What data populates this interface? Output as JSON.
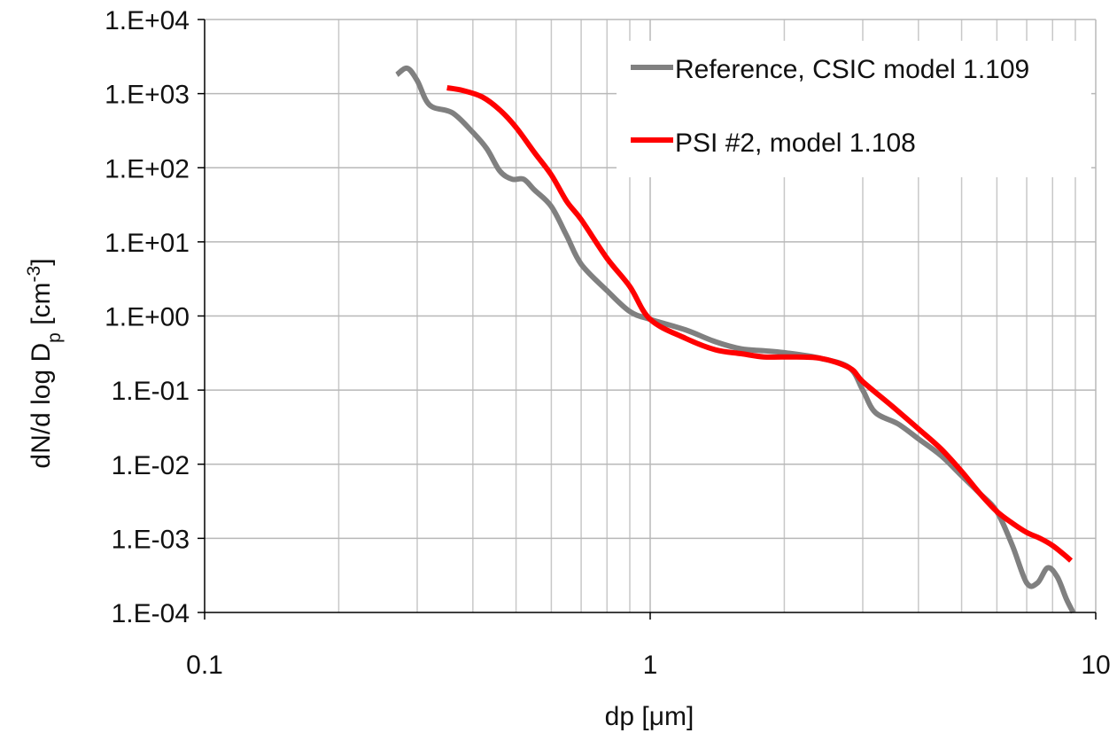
{
  "chart_data": {
    "type": "line",
    "title": "",
    "xlabel": "dp [μm]",
    "ylabel": {
      "main": "dN/d log D",
      "sub": "p",
      "unit_open": " [cm",
      "unit_sup": "-3",
      "unit_close": "]"
    },
    "xscale": "log",
    "yscale": "log",
    "xlim": [
      0.1,
      10
    ],
    "ylim": [
      0.0001,
      10000
    ],
    "grid": true,
    "legend_position": "top-right",
    "x_tick_labels": [
      "0.1",
      "1",
      "10"
    ],
    "y_tick_labels": [
      "1.E-04",
      "1.E-03",
      "1.E-02",
      "1.E-01",
      "1.E+00",
      "1.E+01",
      "1.E+02",
      "1.E+03",
      "1.E+04"
    ],
    "series": [
      {
        "name": "Reference, CSIC model 1.109",
        "color": "#808080",
        "x": [
          0.27,
          0.285,
          0.3,
          0.32,
          0.36,
          0.4,
          0.43,
          0.46,
          0.49,
          0.52,
          0.55,
          0.6,
          0.65,
          0.7,
          0.8,
          0.9,
          1.0,
          1.2,
          1.4,
          1.6,
          1.8,
          2.0,
          2.4,
          2.8,
          3.0,
          3.2,
          3.6,
          4.0,
          4.5,
          5.0,
          5.5,
          6.0,
          6.5,
          7.0,
          7.4,
          7.8,
          8.2,
          8.6,
          8.9
        ],
        "y": [
          1800,
          2200,
          1500,
          700,
          550,
          300,
          180,
          90,
          70,
          70,
          50,
          30,
          12,
          5,
          2.2,
          1.15,
          0.9,
          0.65,
          0.45,
          0.36,
          0.34,
          0.32,
          0.27,
          0.2,
          0.1,
          0.05,
          0.035,
          0.022,
          0.013,
          0.007,
          0.004,
          0.0023,
          0.0008,
          0.00025,
          0.00025,
          0.0004,
          0.0003,
          0.00015,
          0.0001
        ]
      },
      {
        "name": "PSI #2, model 1.108",
        "color": "#ff0000",
        "x": [
          0.35,
          0.38,
          0.42,
          0.46,
          0.5,
          0.55,
          0.6,
          0.65,
          0.7,
          0.8,
          0.9,
          1.0,
          1.2,
          1.4,
          1.6,
          1.8,
          2.0,
          2.4,
          2.8,
          3.0,
          3.5,
          4.0,
          4.5,
          5.0,
          5.5,
          6.0,
          6.5,
          7.0,
          7.5,
          8.0,
          8.5,
          8.8
        ],
        "y": [
          1200,
          1100,
          900,
          600,
          350,
          160,
          80,
          35,
          20,
          6,
          2.5,
          0.9,
          0.5,
          0.35,
          0.31,
          0.28,
          0.28,
          0.27,
          0.2,
          0.13,
          0.06,
          0.03,
          0.016,
          0.008,
          0.004,
          0.0023,
          0.0016,
          0.0012,
          0.001,
          0.0008,
          0.0006,
          0.0005
        ]
      }
    ]
  }
}
